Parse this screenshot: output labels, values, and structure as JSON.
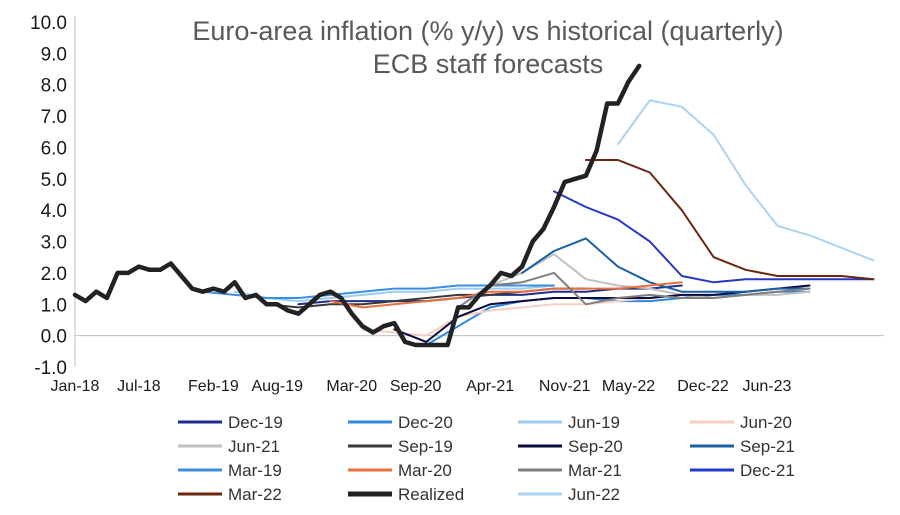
{
  "chart_data": {
    "type": "line",
    "title_lines": [
      "Euro-area inflation (% y/y) vs historical (quarterly)",
      "ECB staff forecasts"
    ],
    "xlabel": "",
    "ylabel": "",
    "ylim": [
      -1,
      10
    ],
    "y_ticks": [
      "-1.0",
      "0.0",
      "1.0",
      "2.0",
      "3.0",
      "4.0",
      "5.0",
      "6.0",
      "7.0",
      "8.0",
      "9.0",
      "10.0"
    ],
    "x_range": [
      "2018-01",
      "2024-05"
    ],
    "x_ticks": [
      "Jan-18",
      "Jul-18",
      "Feb-19",
      "Aug-19",
      "Mar-20",
      "Sep-20",
      "Apr-21",
      "Nov-21",
      "May-22",
      "Dec-22",
      "Jun-23"
    ],
    "grid": false,
    "legend": {
      "placement": "bottom",
      "columns": 4
    },
    "series": [
      {
        "name": "Dec-19",
        "color": "#1f2e8c",
        "width": 2,
        "x": [
          "2019-10",
          "2020-01",
          "2020-04",
          "2020-07",
          "2020-10",
          "2021-01",
          "2021-04",
          "2021-07",
          "2021-10",
          "2022-01",
          "2022-04",
          "2022-07",
          "2022-10"
        ],
        "y": [
          1.0,
          1.1,
          1.1,
          1.1,
          1.1,
          1.2,
          1.3,
          1.3,
          1.4,
          1.4,
          1.5,
          1.5,
          1.6
        ]
      },
      {
        "name": "Dec-20",
        "color": "#2e86de",
        "width": 2,
        "x": [
          "2020-10",
          "2021-01",
          "2021-04",
          "2021-07",
          "2021-10",
          "2022-01",
          "2022-04",
          "2022-07",
          "2022-10",
          "2023-01",
          "2023-04",
          "2023-07",
          "2023-10"
        ],
        "y": [
          -0.3,
          0.3,
          0.9,
          1.1,
          1.2,
          1.2,
          1.1,
          1.1,
          1.2,
          1.3,
          1.3,
          1.4,
          1.4
        ]
      },
      {
        "name": "Jun-19",
        "color": "#9ecbf0",
        "width": 2,
        "x": [
          "2019-04",
          "2019-07",
          "2019-10",
          "2020-01",
          "2020-04",
          "2020-07",
          "2020-10",
          "2021-01",
          "2021-04",
          "2021-07",
          "2021-10"
        ],
        "y": [
          1.4,
          1.2,
          1.1,
          1.2,
          1.3,
          1.4,
          1.4,
          1.5,
          1.5,
          1.5,
          1.6
        ]
      },
      {
        "name": "Jun-20",
        "color": "#f6cfc0",
        "width": 2,
        "x": [
          "2020-04",
          "2020-07",
          "2020-10",
          "2021-01",
          "2021-04",
          "2021-07",
          "2021-10",
          "2022-01",
          "2022-04",
          "2022-07",
          "2022-10"
        ],
        "y": [
          0.2,
          0.1,
          0.0,
          0.6,
          0.8,
          0.9,
          1.0,
          1.0,
          1.1,
          1.2,
          1.3
        ]
      },
      {
        "name": "Jun-21",
        "color": "#c0c0c0",
        "width": 2,
        "x": [
          "2021-04",
          "2021-07",
          "2021-10",
          "2022-01",
          "2022-04",
          "2022-07",
          "2022-10",
          "2023-01",
          "2023-04",
          "2023-07",
          "2023-10"
        ],
        "y": [
          1.6,
          2.0,
          2.6,
          1.8,
          1.6,
          1.5,
          1.3,
          1.2,
          1.3,
          1.3,
          1.4
        ]
      },
      {
        "name": "Sep-19",
        "color": "#3a3a3a",
        "width": 2,
        "x": [
          "2019-07",
          "2019-10",
          "2020-01",
          "2020-04",
          "2020-07",
          "2020-10",
          "2021-01",
          "2021-04",
          "2021-07",
          "2021-10",
          "2022-01"
        ],
        "y": [
          1.0,
          0.9,
          1.0,
          1.0,
          1.1,
          1.2,
          1.3,
          1.3,
          1.4,
          1.5,
          1.5
        ]
      },
      {
        "name": "Sep-20",
        "color": "#0b0b40",
        "width": 2,
        "x": [
          "2020-07",
          "2020-10",
          "2021-01",
          "2021-04",
          "2021-07",
          "2021-10",
          "2022-01",
          "2022-04",
          "2022-07",
          "2022-10",
          "2023-01",
          "2023-04",
          "2023-07",
          "2023-10"
        ],
        "y": [
          0.2,
          -0.2,
          0.6,
          1.0,
          1.1,
          1.2,
          1.2,
          1.2,
          1.2,
          1.3,
          1.3,
          1.4,
          1.5,
          1.6
        ]
      },
      {
        "name": "Sep-21",
        "color": "#1b5fa5",
        "width": 2,
        "x": [
          "2021-07",
          "2021-10",
          "2022-01",
          "2022-04",
          "2022-07",
          "2022-10",
          "2023-01",
          "2023-04",
          "2023-07",
          "2023-10"
        ],
        "y": [
          2.0,
          2.7,
          3.1,
          2.2,
          1.7,
          1.4,
          1.4,
          1.4,
          1.5,
          1.5
        ]
      },
      {
        "name": "Mar-19",
        "color": "#3b8fe0",
        "width": 2,
        "x": [
          "2019-01",
          "2019-04",
          "2019-07",
          "2019-10",
          "2020-01",
          "2020-04",
          "2020-07",
          "2020-10",
          "2021-01",
          "2021-04",
          "2021-07",
          "2021-10"
        ],
        "y": [
          1.4,
          1.3,
          1.2,
          1.2,
          1.3,
          1.4,
          1.5,
          1.5,
          1.6,
          1.6,
          1.6,
          1.6
        ]
      },
      {
        "name": "Mar-20",
        "color": "#e8703a",
        "width": 2,
        "x": [
          "2020-01",
          "2020-04",
          "2020-07",
          "2020-10",
          "2021-01",
          "2021-04",
          "2021-07",
          "2021-10",
          "2022-01",
          "2022-04",
          "2022-07",
          "2022-10"
        ],
        "y": [
          1.1,
          0.9,
          1.0,
          1.1,
          1.2,
          1.4,
          1.4,
          1.5,
          1.5,
          1.5,
          1.6,
          1.7
        ]
      },
      {
        "name": "Mar-21",
        "color": "#7f7f7f",
        "width": 2,
        "x": [
          "2021-01",
          "2021-04",
          "2021-07",
          "2021-10",
          "2022-01",
          "2022-04",
          "2022-07",
          "2022-10",
          "2023-01",
          "2023-04",
          "2023-07",
          "2023-10"
        ],
        "y": [
          0.9,
          1.6,
          1.7,
          2.0,
          1.0,
          1.2,
          1.3,
          1.2,
          1.2,
          1.3,
          1.4,
          1.5
        ]
      },
      {
        "name": "Dec-21",
        "color": "#2438c8",
        "width": 2,
        "x": [
          "2021-10",
          "2022-01",
          "2022-04",
          "2022-07",
          "2022-10",
          "2023-01",
          "2023-04",
          "2023-07",
          "2023-10",
          "2024-01",
          "2024-04"
        ],
        "y": [
          4.6,
          4.1,
          3.7,
          3.0,
          1.9,
          1.7,
          1.8,
          1.8,
          1.8,
          1.8,
          1.8
        ]
      },
      {
        "name": "Mar-22",
        "color": "#6b2710",
        "width": 2,
        "x": [
          "2022-01",
          "2022-04",
          "2022-07",
          "2022-10",
          "2023-01",
          "2023-04",
          "2023-07",
          "2023-10",
          "2024-01",
          "2024-04"
        ],
        "y": [
          5.6,
          5.6,
          5.2,
          4.0,
          2.5,
          2.1,
          1.9,
          1.9,
          1.9,
          1.8
        ]
      },
      {
        "name": "Realized",
        "color": "#222222",
        "width": 4.5,
        "x": [
          "2018-01",
          "2018-02",
          "2018-03",
          "2018-04",
          "2018-05",
          "2018-06",
          "2018-07",
          "2018-08",
          "2018-09",
          "2018-10",
          "2018-11",
          "2018-12",
          "2019-01",
          "2019-02",
          "2019-03",
          "2019-04",
          "2019-05",
          "2019-06",
          "2019-07",
          "2019-08",
          "2019-09",
          "2019-10",
          "2019-11",
          "2019-12",
          "2020-01",
          "2020-02",
          "2020-03",
          "2020-04",
          "2020-05",
          "2020-06",
          "2020-07",
          "2020-08",
          "2020-09",
          "2020-10",
          "2020-11",
          "2020-12",
          "2021-01",
          "2021-02",
          "2021-03",
          "2021-04",
          "2021-05",
          "2021-06",
          "2021-07",
          "2021-08",
          "2021-09",
          "2021-10",
          "2021-11",
          "2021-12",
          "2022-01",
          "2022-02",
          "2022-03",
          "2022-04",
          "2022-05",
          "2022-06"
        ],
        "y": [
          1.3,
          1.1,
          1.4,
          1.2,
          2.0,
          2.0,
          2.2,
          2.1,
          2.1,
          2.3,
          1.9,
          1.5,
          1.4,
          1.5,
          1.4,
          1.7,
          1.2,
          1.3,
          1.0,
          1.0,
          0.8,
          0.7,
          1.0,
          1.3,
          1.4,
          1.2,
          0.7,
          0.3,
          0.1,
          0.3,
          0.4,
          -0.2,
          -0.3,
          -0.3,
          -0.3,
          -0.3,
          0.9,
          0.9,
          1.3,
          1.6,
          2.0,
          1.9,
          2.2,
          3.0,
          3.4,
          4.1,
          4.9,
          5.0,
          5.1,
          5.9,
          7.4,
          7.4,
          8.1,
          8.6
        ]
      },
      {
        "name": "Jun-22",
        "color": "#a9d4f5",
        "width": 2,
        "x": [
          "2022-04",
          "2022-07",
          "2022-10",
          "2023-01",
          "2023-04",
          "2023-07",
          "2023-10",
          "2024-01",
          "2024-04"
        ],
        "y": [
          6.1,
          7.5,
          7.3,
          6.4,
          4.8,
          3.5,
          3.2,
          2.8,
          2.4
        ]
      }
    ]
  }
}
